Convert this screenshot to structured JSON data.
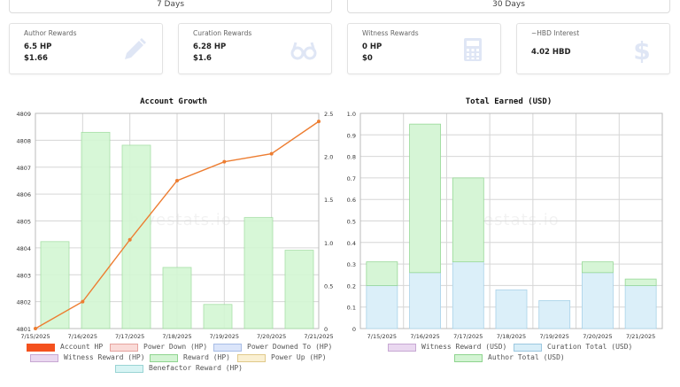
{
  "tabs": [
    {
      "label": "7 Days"
    },
    {
      "label": "30 Days"
    }
  ],
  "cards": [
    {
      "title": "Author Rewards",
      "line1": "6.5 HP",
      "line2": "$1.66",
      "icon": "pencil-icon"
    },
    {
      "title": "Curation Rewards",
      "line1": "6.28 HP",
      "line2": "$1.6",
      "icon": "glasses-icon"
    },
    {
      "title": "Witness Rewards",
      "line1": "0 HP",
      "line2": "$0",
      "icon": "calculator-icon"
    },
    {
      "title": "~HBD Interest",
      "line1": "4.02 HBD",
      "icon": "dollar-icon"
    }
  ],
  "colors": {
    "icon": "#dfe6f5",
    "line": "#ed7d31",
    "green": "#ccf2cc",
    "blue": "#d6ecf7"
  },
  "watermark": "hivestats.io",
  "chart_data": [
    {
      "type": "bar",
      "title": "Account Growth",
      "categories": [
        "7/15/2025",
        "7/16/2025",
        "7/17/2025",
        "7/18/2025",
        "7/19/2025",
        "7/20/2025",
        "7/21/2025"
      ],
      "ylim_left": [
        4801,
        4809
      ],
      "ylim_right": [
        0,
        2.5
      ],
      "left_ticks": [
        "4801",
        "4802",
        "4803",
        "4804",
        "4805",
        "4806",
        "4807",
        "4808",
        "4809"
      ],
      "right_ticks": [
        "0",
        "0.5",
        "1.0",
        "1.5",
        "2.0",
        "2.5"
      ],
      "series": [
        {
          "name": "Account HP",
          "axis": "left",
          "kind": "line",
          "values": [
            4801,
            4802,
            4804.3,
            4806.5,
            4807.2,
            4807.5,
            4808.7
          ]
        },
        {
          "name": "Reward (HP)",
          "axis": "right",
          "kind": "bar",
          "values": [
            1.01,
            2.28,
            2.13,
            0.71,
            0.28,
            1.29,
            0.91
          ]
        }
      ],
      "legend": [
        {
          "label": "Account HP",
          "fill": "#f4511e",
          "border": "#f4511e"
        },
        {
          "label": "Power Down (HP)",
          "fill": "#fadbd8",
          "border": "#e6a39e"
        },
        {
          "label": "Power Downed To (HP)",
          "fill": "#dbe5fa",
          "border": "#a8bde6"
        },
        {
          "label": "Witness Reward (HP)",
          "fill": "#ead8f0",
          "border": "#c7a8d3"
        },
        {
          "label": "Reward (HP)",
          "fill": "#d3f4d3",
          "border": "#8fd48f"
        },
        {
          "label": "Power Up (HP)",
          "fill": "#faf0d2",
          "border": "#e0c98a"
        },
        {
          "label": "Benefactor Reward (HP)",
          "fill": "#d8f4f4",
          "border": "#9ad4d4"
        }
      ]
    },
    {
      "type": "bar",
      "title": "Total Earned (USD)",
      "categories": [
        "7/15/2025",
        "7/16/2025",
        "7/17/2025",
        "7/18/2025",
        "7/19/2025",
        "7/20/2025",
        "7/21/2025"
      ],
      "ylim": [
        0,
        1.0
      ],
      "ticks": [
        "0",
        "0.1",
        "0.2",
        "0.3",
        "0.4",
        "0.5",
        "0.6",
        "0.7",
        "0.8",
        "0.9",
        "1.0"
      ],
      "series": [
        {
          "name": "Curation Total (USD)",
          "values": [
            0.2,
            0.26,
            0.31,
            0.18,
            0.13,
            0.26,
            0.2
          ]
        },
        {
          "name": "Author Total (USD)",
          "values": [
            0.11,
            0.69,
            0.39,
            0,
            0,
            0.05,
            0.03
          ]
        }
      ],
      "legend": [
        {
          "label": "Witness Reward (USD)",
          "fill": "#ead8f0",
          "border": "#c7a8d3"
        },
        {
          "label": "Curation Total (USD)",
          "fill": "#d8eef8",
          "border": "#9cc8e0"
        },
        {
          "label": "Author Total (USD)",
          "fill": "#d3f4d3",
          "border": "#8fd48f"
        }
      ]
    }
  ]
}
